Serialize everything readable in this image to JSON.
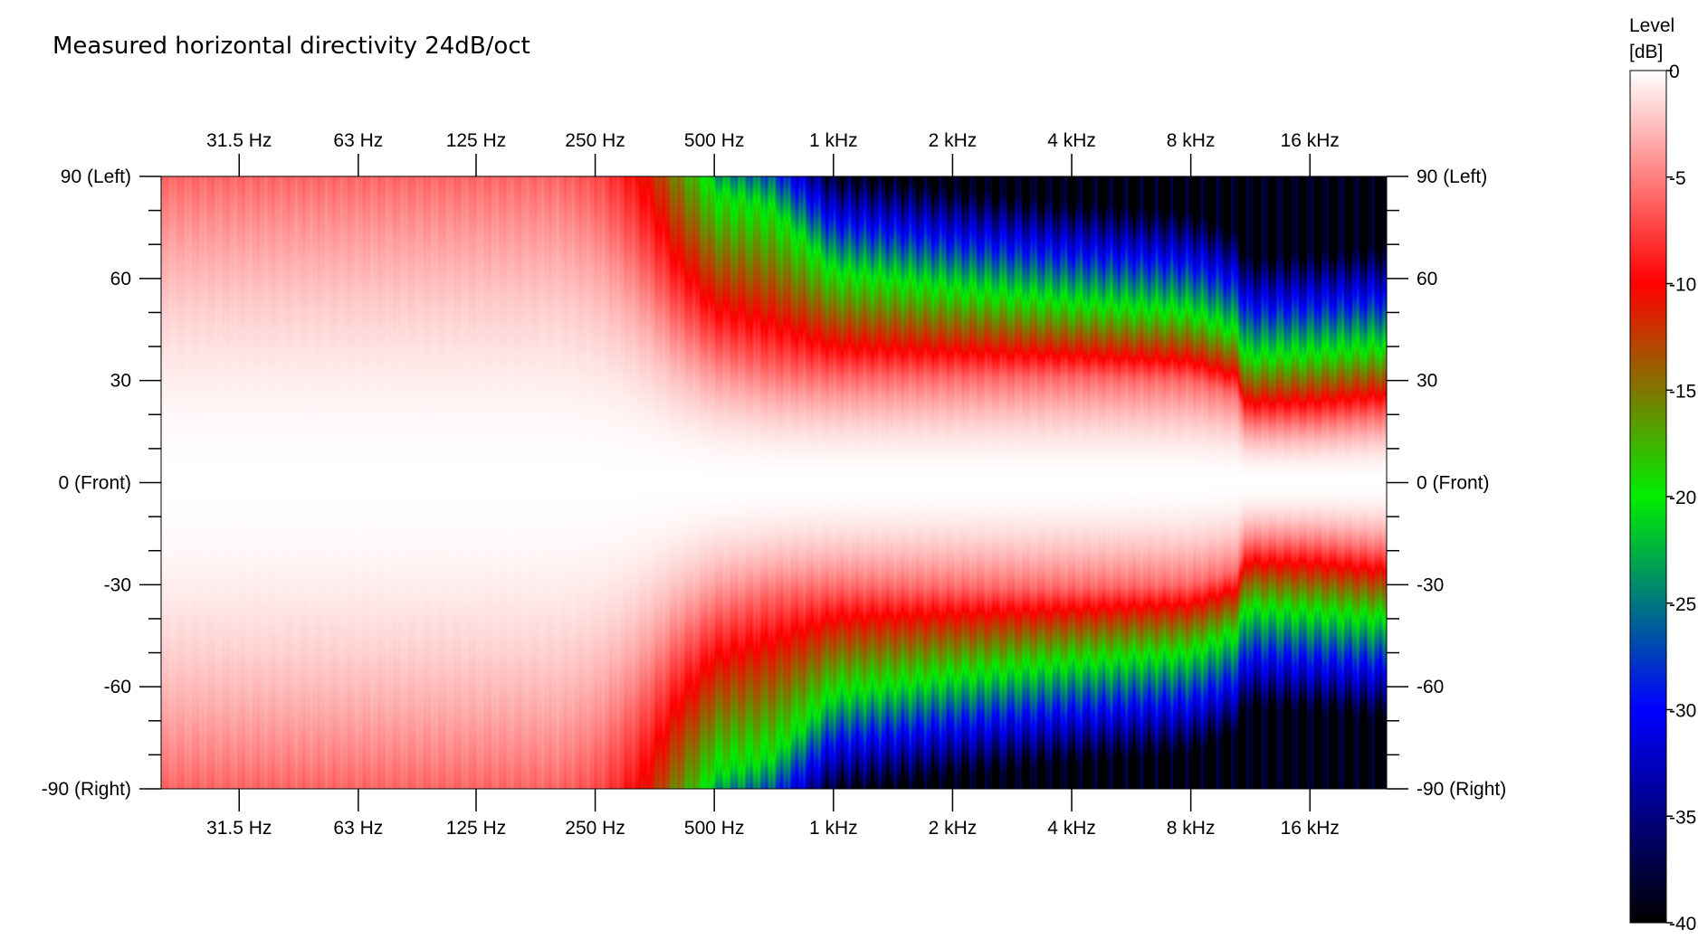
{
  "chart_data": {
    "type": "heatmap",
    "title": "Measured horizontal directivity 24dB/oct",
    "x_scale": "log",
    "x_ticks": [
      {
        "value": 31.5,
        "label": "31.5 Hz"
      },
      {
        "value": 63,
        "label": "63 Hz"
      },
      {
        "value": 125,
        "label": "125 Hz"
      },
      {
        "value": 250,
        "label": "250 Hz"
      },
      {
        "value": 500,
        "label": "500 Hz"
      },
      {
        "value": 1000,
        "label": "1 kHz"
      },
      {
        "value": 2000,
        "label": "2 kHz"
      },
      {
        "value": 4000,
        "label": "4 kHz"
      },
      {
        "value": 8000,
        "label": "8 kHz"
      },
      {
        "value": 16000,
        "label": "16 kHz"
      }
    ],
    "xlim": [
      20,
      25000
    ],
    "y_ticks": [
      {
        "value": 90,
        "label": "90 (Left)"
      },
      {
        "value": 60,
        "label": "60"
      },
      {
        "value": 30,
        "label": "30"
      },
      {
        "value": 0,
        "label": "0 (Front)"
      },
      {
        "value": -30,
        "label": "-30"
      },
      {
        "value": -60,
        "label": "-60"
      },
      {
        "value": -90,
        "label": "-90 (Right)"
      }
    ],
    "ylim": [
      -90,
      90
    ],
    "colorbar": {
      "label_line1": "Level",
      "label_line2": "[dB]",
      "range": [
        -40,
        0
      ],
      "ticks": [
        {
          "value": 0,
          "label": "0"
        },
        {
          "value": -5,
          "label": "-5"
        },
        {
          "value": -10,
          "label": "-10"
        },
        {
          "value": -15,
          "label": "-15"
        },
        {
          "value": -20,
          "label": "-20"
        },
        {
          "value": -25,
          "label": "-25"
        },
        {
          "value": -30,
          "label": "-30"
        },
        {
          "value": -35,
          "label": "-35"
        },
        {
          "value": -40,
          "label": "-40"
        }
      ],
      "stops": [
        {
          "value": 0,
          "color": "#ffffff"
        },
        {
          "value": -10,
          "color": "#ff0000"
        },
        {
          "value": -20,
          "color": "#00ee00"
        },
        {
          "value": -30,
          "color": "#0000ff"
        },
        {
          "value": -40,
          "color": "#000000"
        }
      ]
    },
    "beamwidth_minus6dB": [
      {
        "freq": 20,
        "angle": 90
      },
      {
        "freq": 200,
        "angle": 90
      },
      {
        "freq": 250,
        "angle": 82
      },
      {
        "freq": 300,
        "angle": 70
      },
      {
        "freq": 400,
        "angle": 48
      },
      {
        "freq": 500,
        "angle": 38
      },
      {
        "freq": 700,
        "angle": 33
      },
      {
        "freq": 1000,
        "angle": 31
      },
      {
        "freq": 2000,
        "angle": 31
      },
      {
        "freq": 4000,
        "angle": 31
      },
      {
        "freq": 8000,
        "angle": 30
      },
      {
        "freq": 10500,
        "angle": 26
      },
      {
        "freq": 11000,
        "angle": 18
      },
      {
        "freq": 16000,
        "angle": 18
      },
      {
        "freq": 25000,
        "angle": 20
      }
    ],
    "beamwidth_minus20dB": [
      {
        "freq": 20,
        "angle": 200
      },
      {
        "freq": 250,
        "angle": 200
      },
      {
        "freq": 400,
        "angle": 110
      },
      {
        "freq": 500,
        "angle": 85
      },
      {
        "freq": 700,
        "angle": 80
      },
      {
        "freq": 1000,
        "angle": 62
      },
      {
        "freq": 2000,
        "angle": 57
      },
      {
        "freq": 4000,
        "angle": 53
      },
      {
        "freq": 8000,
        "angle": 50
      },
      {
        "freq": 10500,
        "angle": 44
      },
      {
        "freq": 11000,
        "angle": 37
      },
      {
        "freq": 16000,
        "angle": 38
      },
      {
        "freq": 25000,
        "angle": 40
      }
    ]
  }
}
